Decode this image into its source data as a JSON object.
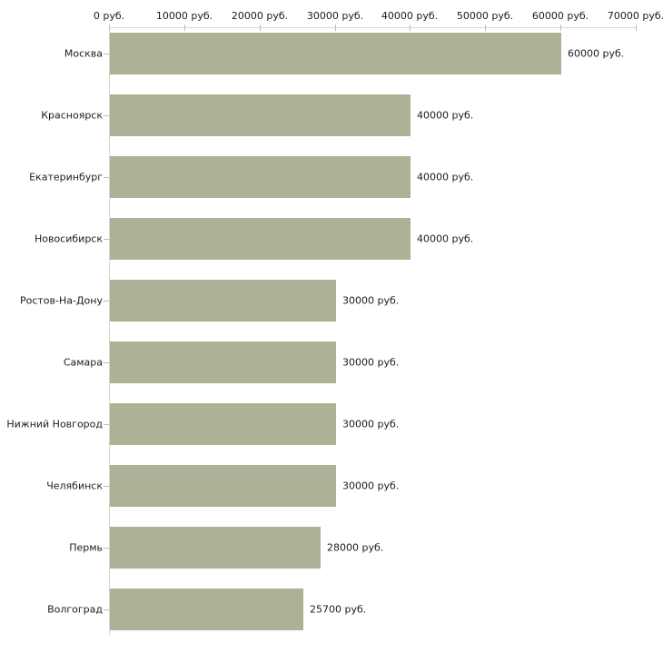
{
  "page": {
    "background": "#ffffff"
  },
  "chart_data": {
    "type": "bar",
    "orientation": "horizontal",
    "title": "",
    "unit": "руб.",
    "categories": [
      "Москва",
      "Красноярск",
      "Екатеринбург",
      "Новосибирск",
      "Ростов-На-Дону",
      "Самара",
      "Нижний Новгород",
      "Челябинск",
      "Пермь",
      "Волгоград"
    ],
    "values": [
      60000,
      40000,
      40000,
      40000,
      30000,
      30000,
      30000,
      30000,
      28000,
      25700
    ],
    "value_labels": [
      "60000 руб.",
      "40000 руб.",
      "40000 руб.",
      "40000 руб.",
      "30000 руб.",
      "30000 руб.",
      "30000 руб.",
      "30000 руб.",
      "28000 руб.",
      "25700 руб."
    ],
    "x_axis": {
      "position": "top",
      "min": 0,
      "max": 70000,
      "tick_step": 10000,
      "tick_labels": [
        "0 руб.",
        "10000 руб.",
        "20000 руб.",
        "30000 руб.",
        "40000 руб.",
        "50000 руб.",
        "60000 руб.",
        "70000 руб."
      ]
    },
    "grid": false,
    "legend": false,
    "colors": {
      "bar": "#abb295",
      "axis_line": "#d5d5d5",
      "tick": "#bfc09a",
      "text": "#1c1c1c"
    }
  }
}
